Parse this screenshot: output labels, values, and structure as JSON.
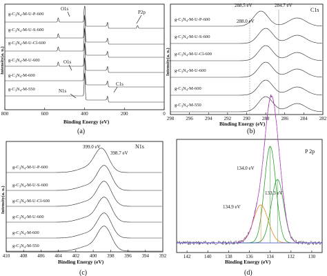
{
  "chart_data": [
    {
      "panel": "(a)",
      "type": "line",
      "xlabel": "Binding Energy (eV)",
      "ylabel": "Intensity(a. u.)",
      "xlim": [
        800,
        0
      ],
      "x_ticks": [
        800,
        600,
        400,
        200,
        0
      ],
      "series": [
        {
          "name": "g-C3N4-M-U-P-600"
        },
        {
          "name": "g-C3N4-M-U-S-600"
        },
        {
          "name": "g-C3N4-M-U-Cl-600"
        },
        {
          "name": "g-C3N4-M-U-600"
        },
        {
          "name": "g-C3N4-M-600"
        },
        {
          "name": "g-C3N4-M-550"
        }
      ],
      "peaks": [
        {
          "label": "O1s",
          "x": 532
        },
        {
          "label": "O1s",
          "x": 532
        },
        {
          "label": "N1s",
          "x": 399
        },
        {
          "label": "C1s",
          "x": 285
        },
        {
          "label": "P2p",
          "x": 134
        }
      ]
    },
    {
      "panel": "(b)",
      "type": "line",
      "title": "C1s",
      "xlabel": "Binding Energy (eV)",
      "ylabel": "Intensity(a. u.)",
      "xlim": [
        298,
        282
      ],
      "x_ticks": [
        298,
        296,
        294,
        292,
        290,
        288,
        286,
        284,
        282
      ],
      "series": [
        {
          "name": "g-C3N4-M-U-P-600"
        },
        {
          "name": "g-C3N4-M-U-S-600"
        },
        {
          "name": "g-C3N4-M-U-Cl-600"
        },
        {
          "name": "g-C3N4-M-U-600"
        },
        {
          "name": "g-C3N4-M-600"
        },
        {
          "name": "g-C3N4-M-550"
        }
      ],
      "annotations": [
        {
          "text": "288.5 eV",
          "x": 288.5
        },
        {
          "text": "288.0 eV",
          "x": 288.0
        },
        {
          "text": "284.7 eV",
          "x": 284.7
        }
      ]
    },
    {
      "panel": "(c)",
      "type": "line",
      "title": "N1s",
      "xlabel": "Binding Energy (eV)",
      "ylabel": "Intensity(a. u.)",
      "xlim": [
        410,
        392
      ],
      "x_ticks": [
        410,
        408,
        406,
        404,
        402,
        400,
        398,
        396,
        394,
        392
      ],
      "series": [
        {
          "name": "g-C3N4-M-U-P-600"
        },
        {
          "name": "g-C3N4-M-U-S-600"
        },
        {
          "name": "g-C3N4-M-U-Cl-600"
        },
        {
          "name": "g-C3N4-M-U-600"
        },
        {
          "name": "g-C3N4-M-600"
        },
        {
          "name": "g-C3N4-M-550"
        }
      ],
      "annotations": [
        {
          "text": "399.0 eV",
          "x": 399.0
        },
        {
          "text": "398.7 eV",
          "x": 398.7
        }
      ]
    },
    {
      "panel": "(d)",
      "type": "line",
      "title": "P 2p",
      "xlabel": "Binding Energy (eV)",
      "ylabel": "Intensity(a. u.)",
      "xlim": [
        143,
        129
      ],
      "x_ticks": [
        142,
        140,
        138,
        136,
        134,
        132,
        130
      ],
      "fit_peaks": [
        {
          "text": "134.0 eV",
          "x": 134.0,
          "color": "#2c9c2c"
        },
        {
          "text": "133.3 eV",
          "x": 133.3,
          "color": "#2c9c2c"
        },
        {
          "text": "134.9 eV",
          "x": 134.9,
          "color": "#e08a22"
        }
      ]
    }
  ],
  "labels": {
    "a": "(a)",
    "b": "(b)",
    "c": "(c)",
    "d": "(d)",
    "c1s_title": "C1s",
    "n1s_title": "N1s",
    "p2p_title": "P 2p",
    "xlabel": "Binding Energy (eV)",
    "ylabel": "Intensity(a. u.)",
    "o1s": "O1s",
    "n1s": "N1s",
    "c1s": "C1s",
    "p2p": "P2p",
    "b_ann1": "288.5 eV",
    "b_ann2": "288.0 eV",
    "b_ann3": "284.7 eV",
    "c_ann1": "399.0 eV",
    "c_ann2": "398.7 eV",
    "d_ann1": "134.0 eV",
    "d_ann2": "133.3 eV",
    "d_ann3": "134.9 eV"
  },
  "sample_names": [
    {
      "pre": "g-C",
      "s1": "3",
      "mid": "N",
      "s2": "4",
      "post": "-M-U-P-600"
    },
    {
      "pre": "g-C",
      "s1": "3",
      "mid": "N",
      "s2": "4",
      "post": "-M-U-S-600"
    },
    {
      "pre": "g-C",
      "s1": "3",
      "mid": "N",
      "s2": "4",
      "post": "-M-U-Cl-600"
    },
    {
      "pre": "g-C",
      "s1": "3",
      "mid": "N",
      "s2": "4",
      "post": "-M-U-600"
    },
    {
      "pre": "g-C",
      "s1": "3",
      "mid": "N",
      "s2": "4",
      "post": "-M-600"
    },
    {
      "pre": "g-C",
      "s1": "3",
      "mid": "N",
      "s2": "4",
      "post": "-M-550"
    }
  ]
}
